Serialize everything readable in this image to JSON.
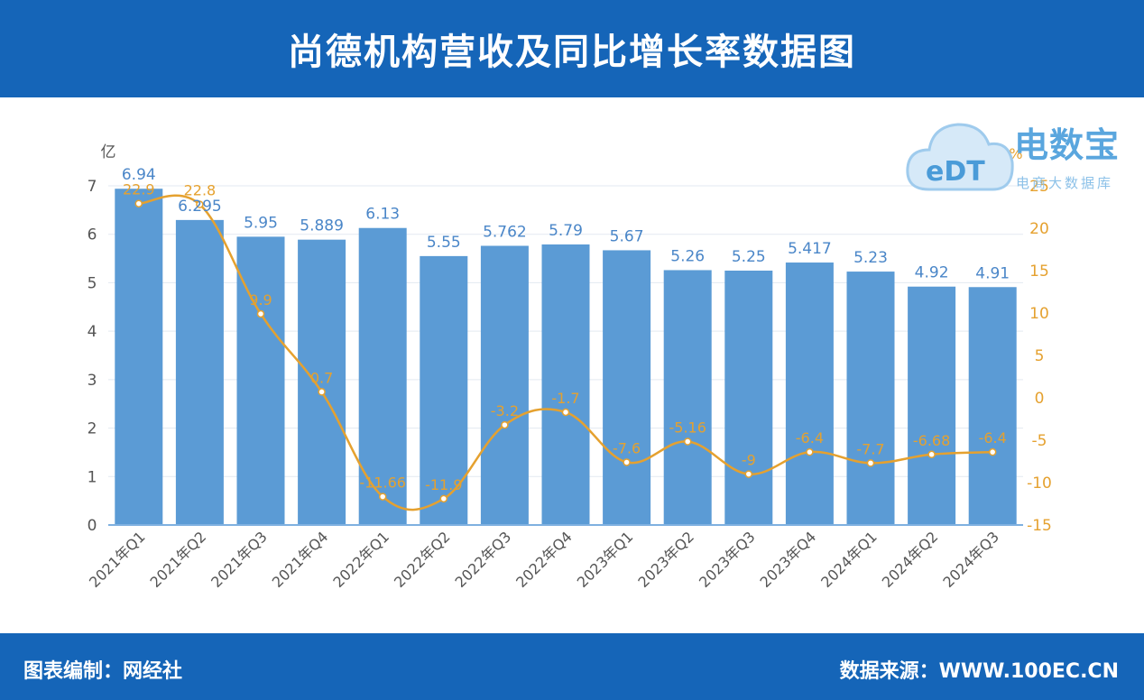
{
  "header": {
    "title": "尚德机构营收及同比增长率数据图"
  },
  "footer": {
    "left": "图表编制：网经社",
    "right": "数据来源：WWW.100EC.CN"
  },
  "logo": {
    "name": "电数宝",
    "sub": "电商大数据库",
    "mark": "eDT",
    "icon": "cloud-icon"
  },
  "chart_data": {
    "type": "bar",
    "categories": [
      "2021年Q1",
      "2021年Q2",
      "2021年Q3",
      "2021年Q4",
      "2022年Q1",
      "2022年Q2",
      "2022年Q3",
      "2022年Q4",
      "2023年Q1",
      "2023年Q2",
      "2023年Q3",
      "2023年Q4",
      "2024年Q1",
      "2024年Q2",
      "2024年Q3"
    ],
    "bar_labels": [
      "6.94",
      "6.295",
      "5.95",
      "5.889",
      "6.13",
      "5.55",
      "5.762",
      "5.79",
      "5.67",
      "5.26",
      "5.25",
      "5.417",
      "5.23",
      "4.92",
      "4.91"
    ],
    "line_labels": [
      "22.9",
      "22.8",
      "9.9",
      "0.7",
      "-11.66",
      "-11.9",
      "-3.2",
      "-1.7",
      "-7.6",
      "-5.16",
      "-9",
      "-6.4",
      "-7.7",
      "-6.68",
      "-6.4"
    ],
    "series": [
      {
        "type": "bar",
        "axis": "left",
        "color": "#5b9bd5",
        "values": [
          6.94,
          6.295,
          5.95,
          5.889,
          6.13,
          5.55,
          5.762,
          5.79,
          5.67,
          5.26,
          5.25,
          5.417,
          5.23,
          4.92,
          4.91
        ]
      },
      {
        "type": "line",
        "axis": "right",
        "color": "#e5a12f",
        "smooth": true,
        "values": [
          22.9,
          22.8,
          9.9,
          0.7,
          -11.66,
          -11.9,
          -3.2,
          -1.7,
          -7.6,
          -5.16,
          -9,
          -6.4,
          -7.7,
          -6.68,
          -6.4
        ]
      }
    ],
    "y_left": {
      "label": "亿",
      "min": 0,
      "max": 7,
      "ticks": [
        "0",
        "1",
        "2",
        "3",
        "4",
        "5",
        "6",
        "7"
      ]
    },
    "y_right": {
      "label": "%",
      "min": -15,
      "max": 25,
      "ticks": [
        "-15",
        "-10",
        "-5",
        "0",
        "5",
        "10",
        "15",
        "20",
        "25"
      ]
    },
    "grid": true,
    "legend": "none"
  }
}
